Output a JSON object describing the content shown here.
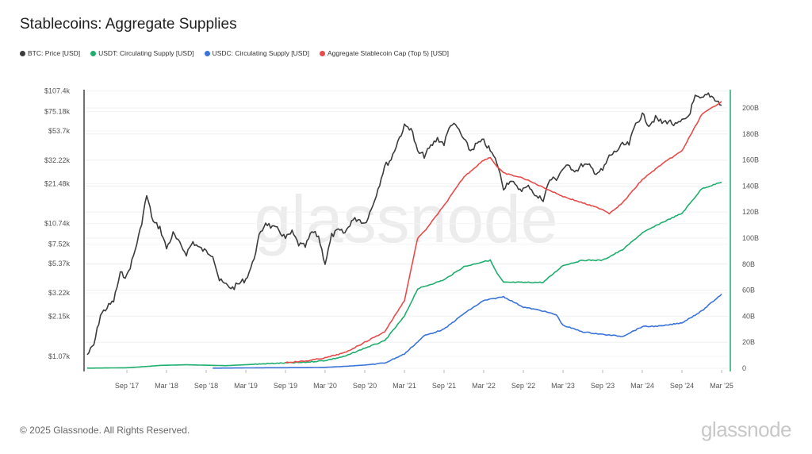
{
  "title": "Stablecoins: Aggregate Supplies",
  "footer": {
    "copyright": "© 2025 Glassnode. All Rights Reserved.",
    "brand": "glassnode"
  },
  "watermark": "glassnode",
  "chart_data": {
    "type": "line",
    "title": "Stablecoins: Aggregate Supplies",
    "legend_position": "top-left",
    "grid": true,
    "x_ticks": [
      "Sep '17",
      "Mar '18",
      "Sep '18",
      "Mar '19",
      "Sep '19",
      "Mar '20",
      "Sep '20",
      "Mar '21",
      "Sep '21",
      "Mar '22",
      "Sep '22",
      "Mar '23",
      "Sep '23",
      "Mar '24",
      "Sep '24",
      "Mar '25"
    ],
    "y_left": {
      "scale": "log",
      "ticks": [
        "$1.07k",
        "$2.15k",
        "$3.22k",
        "$5.37k",
        "$7.52k",
        "$10.74k",
        "$21.48k",
        "$32.22k",
        "$53.7k",
        "$75.18k",
        "$107.4k"
      ],
      "tick_values": [
        1070,
        2150,
        3220,
        5370,
        7520,
        10740,
        21480,
        32220,
        53700,
        75180,
        107400
      ]
    },
    "y_right": {
      "scale": "linear",
      "ticks": [
        "0",
        "20B",
        "40B",
        "60B",
        "80B",
        "100B",
        "120B",
        "140B",
        "160B",
        "180B",
        "200B"
      ],
      "range": [
        0,
        200
      ],
      "unit": "B"
    },
    "series": [
      {
        "name": "BTC: Price [USD]",
        "color": "#3c3c3c",
        "axis": "left",
        "points": [
          [
            "2017-03",
            1100
          ],
          [
            "2017-04",
            1300
          ],
          [
            "2017-05",
            2200
          ],
          [
            "2017-06",
            2500
          ],
          [
            "2017-07",
            2800
          ],
          [
            "2017-08",
            4500
          ],
          [
            "2017-09",
            4300
          ],
          [
            "2017-10",
            6100
          ],
          [
            "2017-11",
            9500
          ],
          [
            "2017-12",
            17500
          ],
          [
            "2018-01",
            11000
          ],
          [
            "2018-02",
            10000
          ],
          [
            "2018-03",
            7000
          ],
          [
            "2018-04",
            9000
          ],
          [
            "2018-05",
            7500
          ],
          [
            "2018-06",
            6400
          ],
          [
            "2018-07",
            7800
          ],
          [
            "2018-08",
            7000
          ],
          [
            "2018-09",
            6600
          ],
          [
            "2018-10",
            6300
          ],
          [
            "2018-11",
            4000
          ],
          [
            "2018-12",
            3700
          ],
          [
            "2019-01",
            3500
          ],
          [
            "2019-02",
            3800
          ],
          [
            "2019-03",
            4100
          ],
          [
            "2019-04",
            5300
          ],
          [
            "2019-05",
            8500
          ],
          [
            "2019-06",
            11000
          ],
          [
            "2019-07",
            10000
          ],
          [
            "2019-08",
            9600
          ],
          [
            "2019-09",
            8300
          ],
          [
            "2019-10",
            9200
          ],
          [
            "2019-11",
            7500
          ],
          [
            "2019-12",
            7200
          ],
          [
            "2020-01",
            9300
          ],
          [
            "2020-02",
            8600
          ],
          [
            "2020-03",
            5400
          ],
          [
            "2020-04",
            8700
          ],
          [
            "2020-05",
            9500
          ],
          [
            "2020-06",
            9100
          ],
          [
            "2020-07",
            11300
          ],
          [
            "2020-08",
            11700
          ],
          [
            "2020-09",
            10800
          ],
          [
            "2020-10",
            13800
          ],
          [
            "2020-11",
            19700
          ],
          [
            "2020-12",
            29000
          ],
          [
            "2021-01",
            33000
          ],
          [
            "2021-02",
            45000
          ],
          [
            "2021-03",
            58000
          ],
          [
            "2021-04",
            57000
          ],
          [
            "2021-05",
            37000
          ],
          [
            "2021-06",
            35000
          ],
          [
            "2021-07",
            41000
          ],
          [
            "2021-08",
            47000
          ],
          [
            "2021-09",
            43000
          ],
          [
            "2021-10",
            61000
          ],
          [
            "2021-11",
            57000
          ],
          [
            "2021-12",
            46000
          ],
          [
            "2022-01",
            38000
          ],
          [
            "2022-02",
            43000
          ],
          [
            "2022-03",
            45000
          ],
          [
            "2022-04",
            38000
          ],
          [
            "2022-05",
            31000
          ],
          [
            "2022-06",
            20000
          ],
          [
            "2022-07",
            23000
          ],
          [
            "2022-08",
            20000
          ],
          [
            "2022-09",
            19500
          ],
          [
            "2022-10",
            20500
          ],
          [
            "2022-11",
            17000
          ],
          [
            "2022-12",
            16500
          ],
          [
            "2023-01",
            23000
          ],
          [
            "2023-02",
            23500
          ],
          [
            "2023-03",
            28000
          ],
          [
            "2023-04",
            29000
          ],
          [
            "2023-05",
            27000
          ],
          [
            "2023-06",
            30000
          ],
          [
            "2023-07",
            29000
          ],
          [
            "2023-08",
            26000
          ],
          [
            "2023-09",
            27000
          ],
          [
            "2023-10",
            34500
          ],
          [
            "2023-11",
            37700
          ],
          [
            "2023-12",
            42000
          ],
          [
            "2024-01",
            42500
          ],
          [
            "2024-02",
            61000
          ],
          [
            "2024-03",
            71000
          ],
          [
            "2024-04",
            60000
          ],
          [
            "2024-05",
            67000
          ],
          [
            "2024-06",
            62000
          ],
          [
            "2024-07",
            64000
          ],
          [
            "2024-08",
            59000
          ],
          [
            "2024-09",
            63000
          ],
          [
            "2024-10",
            70000
          ],
          [
            "2024-11",
            96000
          ],
          [
            "2024-12",
            93000
          ],
          [
            "2025-01",
            102000
          ],
          [
            "2025-02",
            94000
          ],
          [
            "2025-03",
            84000
          ]
        ]
      },
      {
        "name": "USDT: Circulating Supply [USD]",
        "color": "#1fae6e",
        "axis": "right",
        "points": [
          [
            "2017-03",
            0.1
          ],
          [
            "2017-09",
            0.4
          ],
          [
            "2017-12",
            1.4
          ],
          [
            "2018-02",
            2.2
          ],
          [
            "2018-06",
            2.7
          ],
          [
            "2018-12",
            2
          ],
          [
            "2019-06",
            3.5
          ],
          [
            "2019-12",
            4.6
          ],
          [
            "2020-03",
            6
          ],
          [
            "2020-06",
            9.2
          ],
          [
            "2020-09",
            15.5
          ],
          [
            "2020-12",
            21
          ],
          [
            "2021-03",
            40
          ],
          [
            "2021-05",
            61
          ],
          [
            "2021-09",
            68
          ],
          [
            "2021-12",
            78
          ],
          [
            "2022-03",
            82
          ],
          [
            "2022-04",
            83
          ],
          [
            "2022-05",
            73
          ],
          [
            "2022-06",
            66
          ],
          [
            "2022-12",
            66
          ],
          [
            "2023-03",
            79
          ],
          [
            "2023-06",
            83
          ],
          [
            "2023-09",
            83
          ],
          [
            "2023-12",
            91
          ],
          [
            "2024-03",
            104
          ],
          [
            "2024-06",
            112
          ],
          [
            "2024-09",
            119
          ],
          [
            "2024-12",
            138
          ],
          [
            "2025-03",
            143
          ]
        ]
      },
      {
        "name": "USDC: Circulating Supply [USD]",
        "color": "#3b73d9",
        "axis": "right",
        "points": [
          [
            "2018-10",
            0.1
          ],
          [
            "2019-06",
            0.4
          ],
          [
            "2019-12",
            0.5
          ],
          [
            "2020-03",
            0.7
          ],
          [
            "2020-06",
            1.5
          ],
          [
            "2020-09",
            2.5
          ],
          [
            "2020-12",
            4
          ],
          [
            "2021-03",
            11
          ],
          [
            "2021-06",
            25
          ],
          [
            "2021-09",
            30
          ],
          [
            "2021-12",
            42
          ],
          [
            "2022-03",
            52
          ],
          [
            "2022-06",
            55
          ],
          [
            "2022-09",
            47
          ],
          [
            "2022-12",
            44
          ],
          [
            "2023-02",
            41
          ],
          [
            "2023-03",
            33
          ],
          [
            "2023-06",
            28
          ],
          [
            "2023-09",
            26
          ],
          [
            "2023-12",
            24.5
          ],
          [
            "2024-03",
            32
          ],
          [
            "2024-06",
            32.5
          ],
          [
            "2024-09",
            35
          ],
          [
            "2024-12",
            44
          ],
          [
            "2025-03",
            57
          ]
        ]
      },
      {
        "name": "Aggregate Stablecoin Cap (Top 5) [USD]",
        "color": "#e84b4b",
        "axis": "right",
        "points": [
          [
            "2019-09",
            4.5
          ],
          [
            "2019-12",
            5.5
          ],
          [
            "2020-03",
            8
          ],
          [
            "2020-06",
            12
          ],
          [
            "2020-09",
            20
          ],
          [
            "2020-12",
            28
          ],
          [
            "2021-03",
            52
          ],
          [
            "2021-05",
            100
          ],
          [
            "2021-06",
            105
          ],
          [
            "2021-09",
            125
          ],
          [
            "2021-12",
            147
          ],
          [
            "2022-03",
            160
          ],
          [
            "2022-04",
            162
          ],
          [
            "2022-05",
            155
          ],
          [
            "2022-06",
            150
          ],
          [
            "2022-09",
            146
          ],
          [
            "2022-12",
            139
          ],
          [
            "2023-03",
            132
          ],
          [
            "2023-06",
            127
          ],
          [
            "2023-09",
            122
          ],
          [
            "2023-10",
            119
          ],
          [
            "2023-12",
            127
          ],
          [
            "2024-03",
            145
          ],
          [
            "2024-06",
            157
          ],
          [
            "2024-09",
            167
          ],
          [
            "2024-12",
            195
          ],
          [
            "2025-03",
            205
          ]
        ]
      }
    ]
  }
}
